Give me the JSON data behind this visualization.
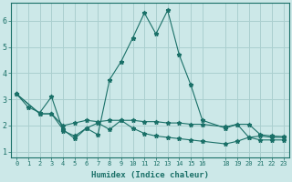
{
  "xlabel": "Humidex (Indice chaleur)",
  "bg_color": "#cce8e8",
  "line_color": "#1a7068",
  "grid_color": "#aacfcf",
  "xlim": [
    -0.5,
    23.5
  ],
  "ylim": [
    0.8,
    6.7
  ],
  "series": [
    {
      "x": [
        0,
        1,
        2,
        3,
        4,
        5,
        6,
        7,
        8,
        9,
        10,
        11,
        12,
        13,
        14,
        15,
        16,
        18,
        19,
        20,
        21,
        22,
        23
      ],
      "y": [
        3.2,
        2.7,
        2.5,
        3.1,
        1.8,
        1.6,
        1.9,
        1.65,
        3.75,
        4.45,
        5.35,
        6.3,
        5.5,
        6.4,
        4.7,
        3.55,
        2.2,
        1.9,
        2.05,
        1.55,
        1.6,
        1.55,
        1.55
      ]
    },
    {
      "x": [
        0,
        2,
        3,
        4,
        5,
        6,
        7,
        8,
        9,
        10,
        11,
        12,
        13,
        14,
        15,
        16,
        18,
        19,
        20,
        21,
        22,
        23
      ],
      "y": [
        3.2,
        2.45,
        2.45,
        2.0,
        2.1,
        2.2,
        2.15,
        2.2,
        2.2,
        2.2,
        2.15,
        2.15,
        2.1,
        2.1,
        2.05,
        2.05,
        1.95,
        2.05,
        2.05,
        1.65,
        1.6,
        1.58
      ]
    },
    {
      "x": [
        0,
        2,
        3,
        4,
        5,
        6,
        7,
        8,
        9,
        10,
        11,
        12,
        13,
        14,
        15,
        16,
        18,
        19,
        20,
        21,
        22,
        23
      ],
      "y": [
        3.2,
        2.45,
        2.45,
        1.85,
        1.5,
        1.9,
        2.1,
        1.85,
        2.2,
        1.9,
        1.7,
        1.6,
        1.55,
        1.5,
        1.45,
        1.4,
        1.3,
        1.4,
        1.55,
        1.45,
        1.45,
        1.45
      ]
    }
  ],
  "yticks": [
    1,
    2,
    3,
    4,
    5,
    6
  ],
  "xticks": [
    0,
    1,
    2,
    3,
    4,
    5,
    6,
    7,
    8,
    9,
    10,
    11,
    12,
    13,
    14,
    15,
    16,
    18,
    19,
    20,
    21,
    22,
    23
  ]
}
